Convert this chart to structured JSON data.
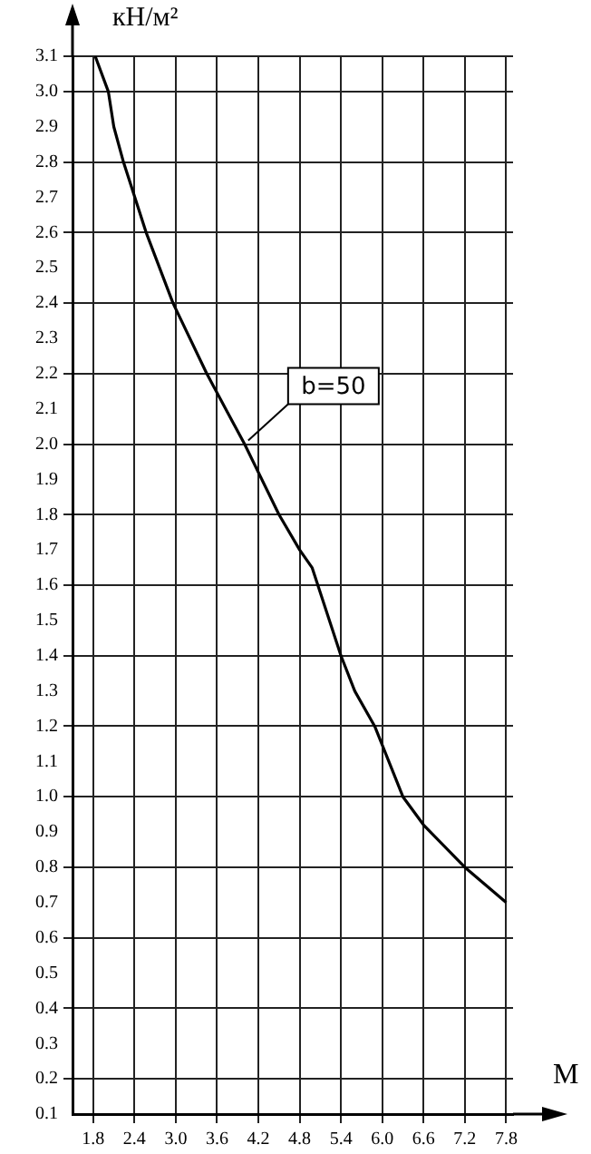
{
  "chart_data": {
    "type": "line",
    "xlabel": "М",
    "ylabel": "кН/м²",
    "x": [
      1.83,
      2.02,
      2.1,
      2.24,
      2.57,
      2.96,
      3.45,
      4.0,
      4.5,
      4.8,
      4.98,
      5.4,
      5.6,
      5.89,
      6.3,
      6.6,
      7.2,
      7.8
    ],
    "series": [
      {
        "color": "#000000",
        "values": [
          3.1,
          3.0,
          2.9,
          2.8,
          2.6,
          2.4,
          2.2,
          2.0,
          1.8,
          1.7,
          1.65,
          1.4,
          1.3,
          1.2,
          1.0,
          0.92,
          0.8,
          0.7
        ]
      }
    ],
    "xlim": [
      1.5,
      7.9
    ],
    "xticks": [
      1.8,
      2.4,
      {
        "value": 3,
        "label": "3.0"
      },
      3.6,
      4.2,
      4.8,
      5.4,
      {
        "value": 6,
        "label": "6.0"
      },
      6.6,
      7.2,
      7.8
    ],
    "ylim": [
      0.1,
      3.1
    ],
    "yticks": [
      0.1,
      0.2,
      0.3,
      0.4,
      0.5,
      0.6,
      0.7,
      0.8,
      0.9,
      {
        "value": 1,
        "label": "1.0"
      },
      1.1,
      1.2,
      1.3,
      1.4,
      1.5,
      1.6,
      1.7,
      1.8,
      1.9,
      {
        "value": 2,
        "label": "2.0"
      },
      2.1,
      2.2,
      2.3,
      2.4,
      2.5,
      2.6,
      2.7,
      2.8,
      2.9,
      {
        "value": 3,
        "label": "3.0"
      },
      3.1
    ],
    "annotations": [
      {
        "text": "b=50",
        "x": 4.0,
        "y": 2.0
      }
    ],
    "grid": true,
    "legend": false,
    "marker": "none",
    "line_style": "solid"
  }
}
